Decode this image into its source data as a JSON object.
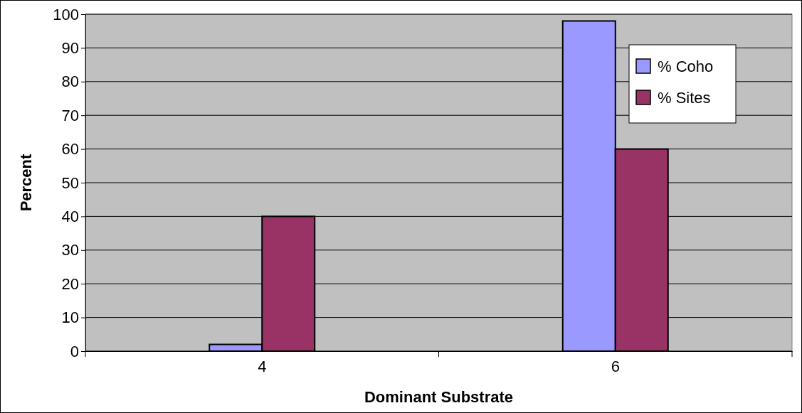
{
  "chart_data": {
    "type": "bar",
    "xlabel": "Dominant Substrate",
    "ylabel": "Percent",
    "categories": [
      "4",
      "6"
    ],
    "series": [
      {
        "name": "% Coho",
        "color": "#9999ff",
        "values": [
          2,
          98
        ]
      },
      {
        "name": "% Sites",
        "color": "#993366",
        "values": [
          40,
          60
        ]
      }
    ],
    "ylim": [
      0,
      100
    ],
    "yticks": [
      0,
      10,
      20,
      30,
      40,
      50,
      60,
      70,
      80,
      90,
      100
    ],
    "grid": "y",
    "legend": "top right"
  }
}
